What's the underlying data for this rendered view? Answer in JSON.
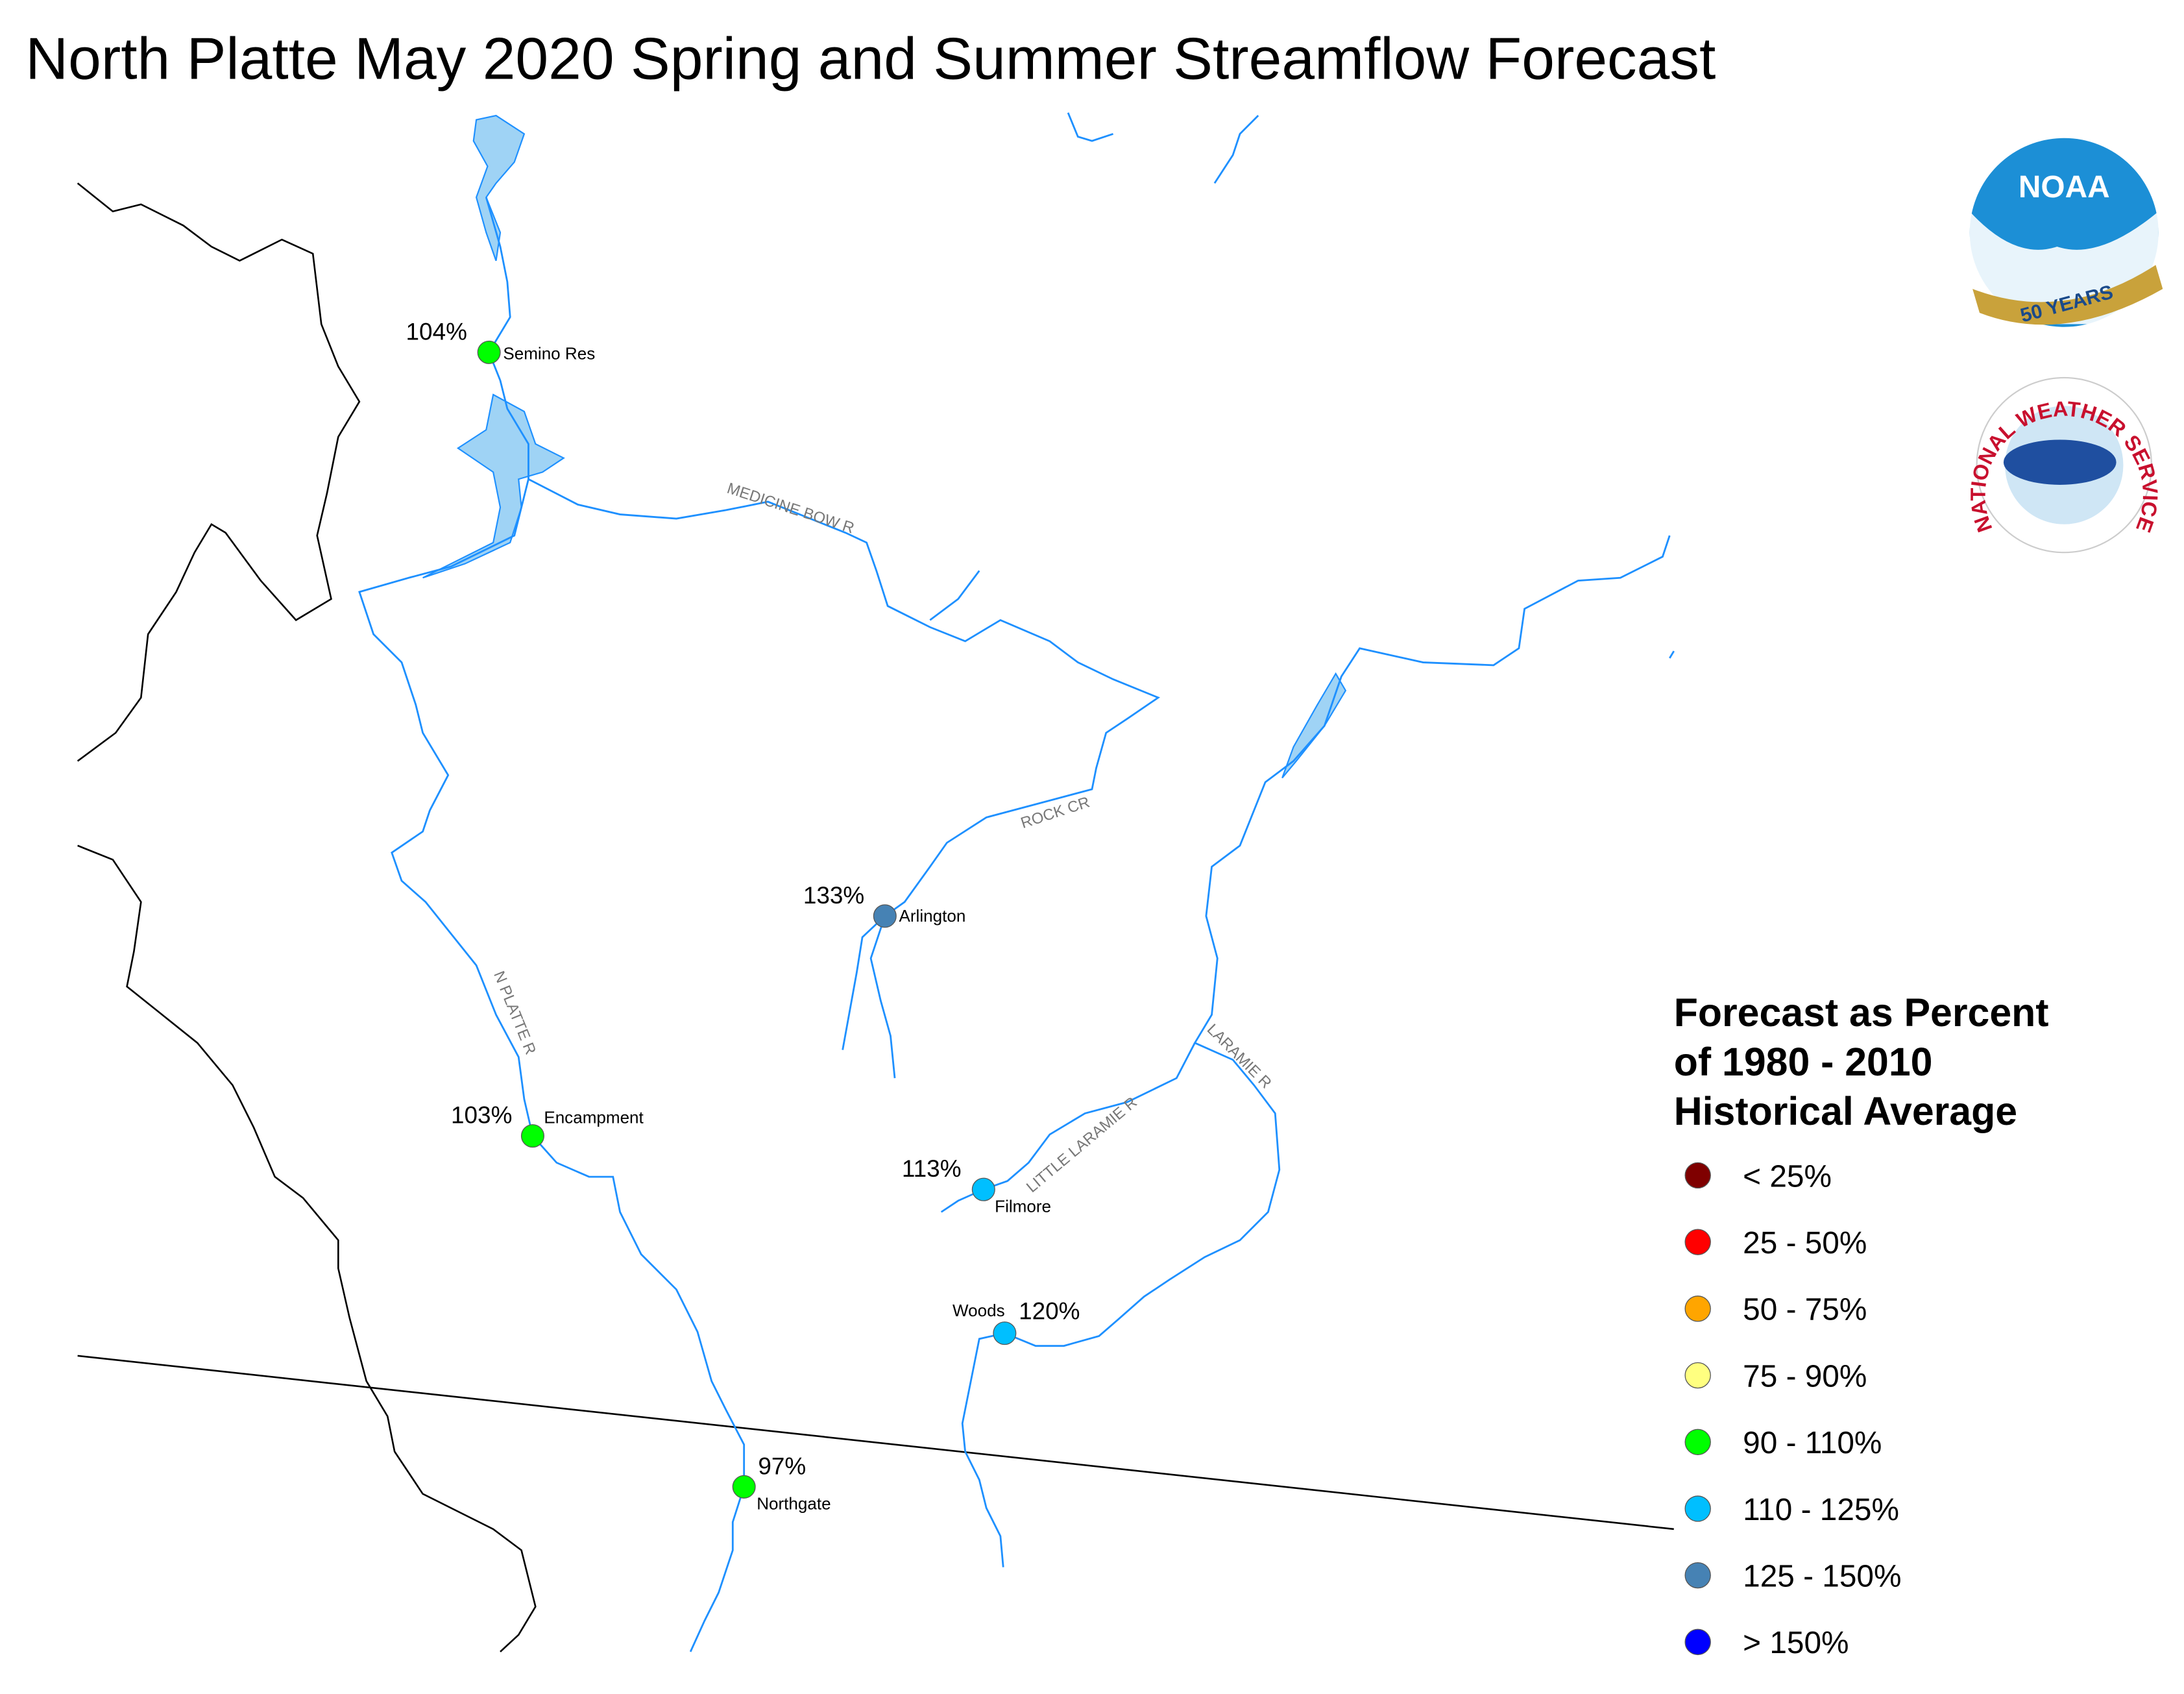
{
  "title": "North Platte May 2020 Spring and Summer Streamflow Forecast",
  "sites": [
    {
      "name": "Semino Res",
      "percent_label": "104%",
      "color": "#00ff00"
    },
    {
      "name": "Arlington",
      "percent_label": "133%",
      "color": "#4682b4"
    },
    {
      "name": "Encampment",
      "percent_label": "103%",
      "color": "#00ff00"
    },
    {
      "name": "Filmore",
      "percent_label": "113%",
      "color": "#00bfff"
    },
    {
      "name": "Woods",
      "percent_label": "120%",
      "color": "#00bfff"
    },
    {
      "name": "Northgate",
      "percent_label": "97%",
      "color": "#00ff00"
    }
  ],
  "river_labels": [
    "MEDICINE BOW R",
    "ROCK CR",
    "N PLATTE R",
    "LITTLE LARAMIE R",
    "LARAMIE R"
  ],
  "legend": {
    "title_lines": [
      "Forecast as Percent",
      "of 1980 - 2010",
      "Historical Average"
    ],
    "items": [
      {
        "label": "< 25%",
        "color": "#7f0000"
      },
      {
        "label": "25 - 50%",
        "color": "#ff0000"
      },
      {
        "label": "50 - 75%",
        "color": "#ffa500"
      },
      {
        "label": "75 - 90%",
        "color": "#ffff80"
      },
      {
        "label": "90 - 110%",
        "color": "#00ff00"
      },
      {
        "label": "110 - 125%",
        "color": "#00bfff"
      },
      {
        "label": "125 - 150%",
        "color": "#4682b4"
      },
      {
        "label": "> 150%",
        "color": "#0000ff"
      }
    ]
  },
  "logos": {
    "noaa": "NOAA",
    "noaa_years": "50 YEARS",
    "nws": "NATIONAL WEATHER SERVICE"
  }
}
